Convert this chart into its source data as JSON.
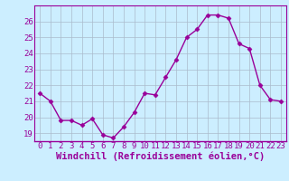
{
  "x": [
    0,
    1,
    2,
    3,
    4,
    5,
    6,
    7,
    8,
    9,
    10,
    11,
    12,
    13,
    14,
    15,
    16,
    17,
    18,
    19,
    20,
    21,
    22,
    23
  ],
  "y": [
    21.5,
    21.0,
    19.8,
    19.8,
    19.5,
    19.9,
    18.9,
    18.7,
    19.4,
    20.3,
    21.5,
    21.4,
    22.5,
    23.6,
    25.0,
    25.5,
    26.4,
    26.4,
    26.2,
    24.6,
    24.3,
    22.0,
    21.1,
    21.0
  ],
  "ylim": [
    18.5,
    27.0
  ],
  "xlim": [
    -0.5,
    23.5
  ],
  "yticks": [
    19,
    20,
    21,
    22,
    23,
    24,
    25,
    26
  ],
  "xticks": [
    0,
    1,
    2,
    3,
    4,
    5,
    6,
    7,
    8,
    9,
    10,
    11,
    12,
    13,
    14,
    15,
    16,
    17,
    18,
    19,
    20,
    21,
    22,
    23
  ],
  "xlabel": "Windchill (Refroidissement éolien,°C)",
  "line_color": "#990099",
  "marker": "D",
  "marker_size": 2.5,
  "bg_color": "#cceeff",
  "grid_color": "#aabbcc",
  "tick_label_fontsize": 6.5,
  "xlabel_fontsize": 7.5
}
